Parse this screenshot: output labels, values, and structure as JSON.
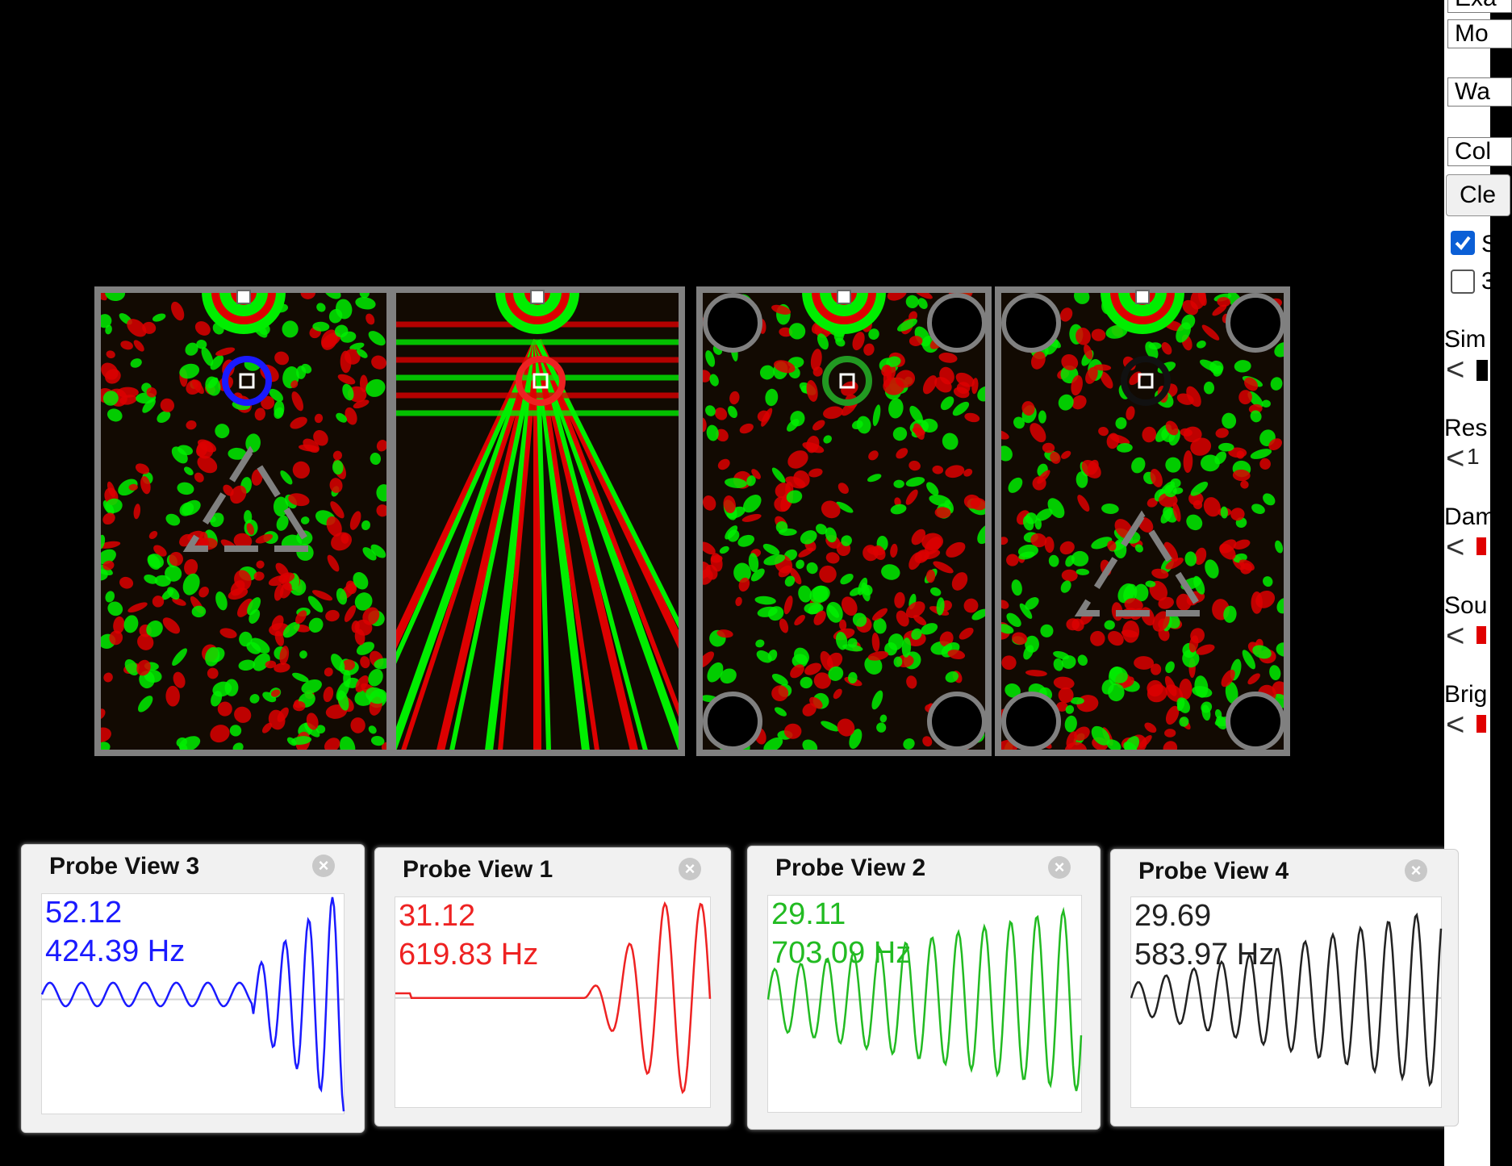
{
  "control_panel": {
    "select_1": "Exa",
    "select_2": "Mo",
    "select_3": "Wa",
    "select_4": "Col",
    "clear_button": "Cle",
    "checkbox_1": {
      "checked": true,
      "label": "S"
    },
    "checkbox_2": {
      "checked": false,
      "label": "3"
    },
    "sliders": [
      {
        "label": "Sim",
        "value": ""
      },
      {
        "label": "Res",
        "value": "1"
      },
      {
        "label": "Dam",
        "value": ""
      },
      {
        "label": "Sou",
        "value": ""
      },
      {
        "label": "Brig",
        "value": ""
      }
    ]
  },
  "probes": [
    {
      "title": "Probe View 3",
      "value": "52.12",
      "frequency": "424.39 Hz",
      "color": "#1a1aff"
    },
    {
      "title": "Probe View 1",
      "value": "31.12",
      "frequency": "619.83 Hz",
      "color": "#ee2222"
    },
    {
      "title": "Probe View 2",
      "value": "29.11",
      "frequency": "703.09 Hz",
      "color": "#22bb22"
    },
    {
      "title": "Probe View 4",
      "value": "29.69",
      "frequency": "583.97 Hz",
      "color": "#222222"
    }
  ],
  "colors": {
    "wave_positive": "#00ee00",
    "wave_negative": "#dd0000",
    "wall": "#808080",
    "background": "#000000"
  },
  "icons": {
    "close": "close-circle-icon",
    "slider_left": "chevron-left-icon"
  }
}
